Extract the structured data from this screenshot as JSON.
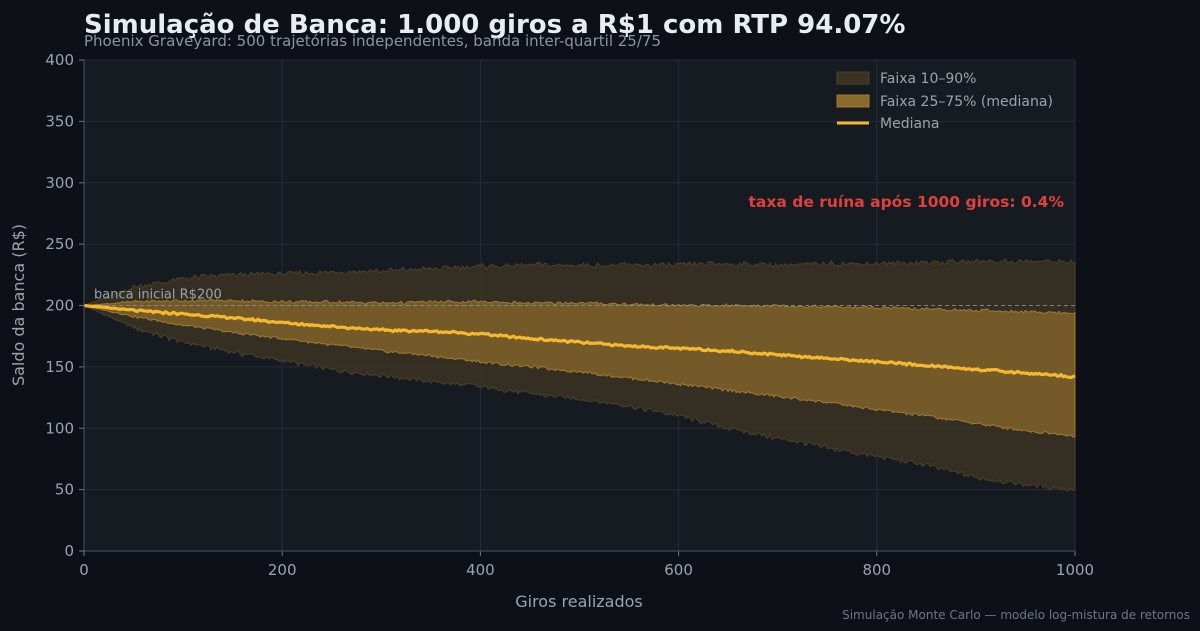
{
  "chart_data": {
    "type": "area",
    "title": "Simulação de Banca: 1.000 giros a R$1 com RTP 94.07%",
    "subtitle": "Phoenix Graveyard: 500 trajetórias independentes, banda inter-quartil 25/75",
    "xlabel": "Giros realizados",
    "ylabel": "Saldo da banca (R$)",
    "xlim": [
      0,
      1000
    ],
    "ylim": [
      0,
      400
    ],
    "xticks": [
      0,
      200,
      400,
      600,
      800,
      1000
    ],
    "yticks": [
      0,
      50,
      100,
      150,
      200,
      250,
      300,
      350,
      400
    ],
    "grid": true,
    "legend_position": "top-right",
    "legend": {
      "band_10_90": "Faixa 10–90%",
      "band_25_75": "Faixa 25–75% (mediana)",
      "median": "Mediana"
    },
    "reference_line": {
      "y": 200,
      "label": "banca inicial R$200"
    },
    "annotation": "taxa de ruína após 1000 giros: 0.4%",
    "footer": "Simulação Monte Carlo — modelo log-mistura de retornos",
    "colors": {
      "background": "#0d1117",
      "plot_background": "#161b22",
      "median": "#f5b82e",
      "band_25_75": "#8a6a2b",
      "band_10_90": "#3a3322",
      "annotation": "#e0413c",
      "text": "#c9d1d9"
    },
    "x": [
      0,
      50,
      100,
      150,
      200,
      250,
      300,
      350,
      400,
      450,
      500,
      550,
      600,
      650,
      700,
      750,
      800,
      850,
      900,
      950,
      1000
    ],
    "series": [
      {
        "name": "p10",
        "values": [
          200,
          182,
          170,
          162,
          155,
          148,
          143,
          138,
          134,
          128,
          124,
          118,
          110,
          100,
          92,
          84,
          77,
          70,
          60,
          54,
          50
        ]
      },
      {
        "name": "p25",
        "values": [
          200,
          191,
          184,
          178,
          173,
          168,
          163,
          159,
          154,
          150,
          146,
          141,
          136,
          131,
          126,
          121,
          115,
          110,
          104,
          98,
          94
        ]
      },
      {
        "name": "Mediana",
        "values": [
          200,
          196,
          193,
          190,
          186,
          183,
          180,
          179,
          177,
          173,
          170,
          167,
          165,
          163,
          160,
          157,
          154,
          151,
          148,
          145,
          142
        ]
      },
      {
        "name": "p75",
        "values": [
          200,
          203,
          204,
          204,
          203,
          203,
          202,
          203,
          203,
          202,
          202,
          201,
          200,
          200,
          200,
          199,
          198,
          197,
          196,
          195,
          194
        ]
      },
      {
        "name": "p90",
        "values": [
          200,
          215,
          222,
          225,
          226,
          227,
          228,
          230,
          232,
          233,
          233,
          233,
          233,
          234,
          233,
          234,
          234,
          235,
          236,
          236,
          236
        ]
      }
    ]
  }
}
